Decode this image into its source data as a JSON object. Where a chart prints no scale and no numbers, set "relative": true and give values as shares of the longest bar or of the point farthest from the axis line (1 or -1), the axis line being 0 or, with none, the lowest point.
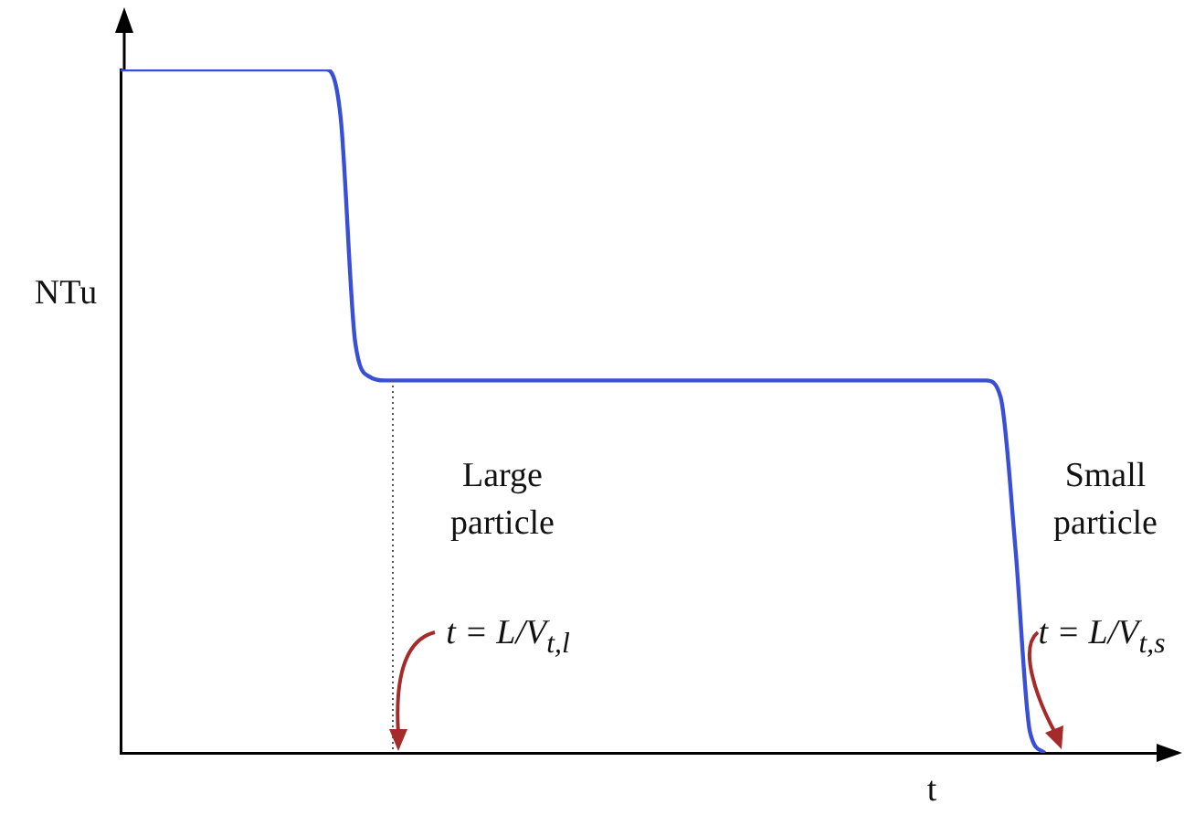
{
  "chart_data": {
    "type": "line",
    "relative": true,
    "xlabel": "t",
    "ylabel": "NTu",
    "color": "#3a4fd8",
    "marker": "none",
    "line_style": "solid",
    "grid": false,
    "legend": false,
    "categories": [
      null,
      null,
      null,
      null,
      null,
      null,
      null,
      null,
      null,
      null,
      null,
      null,
      null,
      null,
      null,
      null,
      null,
      null,
      null,
      null,
      null,
      null,
      null,
      null,
      null,
      null,
      null,
      null,
      null,
      null,
      null,
      null,
      null,
      null,
      null,
      null,
      null,
      null,
      null,
      null,
      null,
      null,
      null,
      null,
      null,
      null,
      null,
      null,
      null,
      null,
      null,
      null,
      null,
      null,
      null,
      null,
      null,
      null,
      null,
      null,
      null,
      null,
      null,
      null,
      null,
      null,
      null,
      null,
      null,
      null,
      null,
      null
    ],
    "values": [
      1,
      1,
      1,
      1,
      1,
      1,
      1,
      1,
      1,
      1,
      1,
      1,
      1,
      1,
      1,
      0.93,
      0.6,
      0.55,
      0.545,
      0.545,
      0.545,
      0.545,
      0.545,
      0.545,
      0.545,
      0.545,
      0.545,
      0.545,
      0.545,
      0.545,
      0.545,
      0.545,
      0.545,
      0.545,
      0.545,
      0.545,
      0.545,
      0.545,
      0.545,
      0.545,
      0.545,
      0.545,
      0.545,
      0.545,
      0.545,
      0.545,
      0.545,
      0.545,
      0.545,
      0.545,
      0.545,
      0.545,
      0.545,
      0.545,
      0.545,
      0.545,
      0.545,
      0.545,
      0.545,
      0.545,
      0.52,
      0.3,
      0.03,
      0,
      null,
      null,
      null,
      null,
      null,
      null,
      null,
      null
    ],
    "annotations": [
      "Large particle",
      "t = L/V$_{t,l}$",
      "Small particle",
      "t = L/V$_{t,s}$"
    ]
  }
}
